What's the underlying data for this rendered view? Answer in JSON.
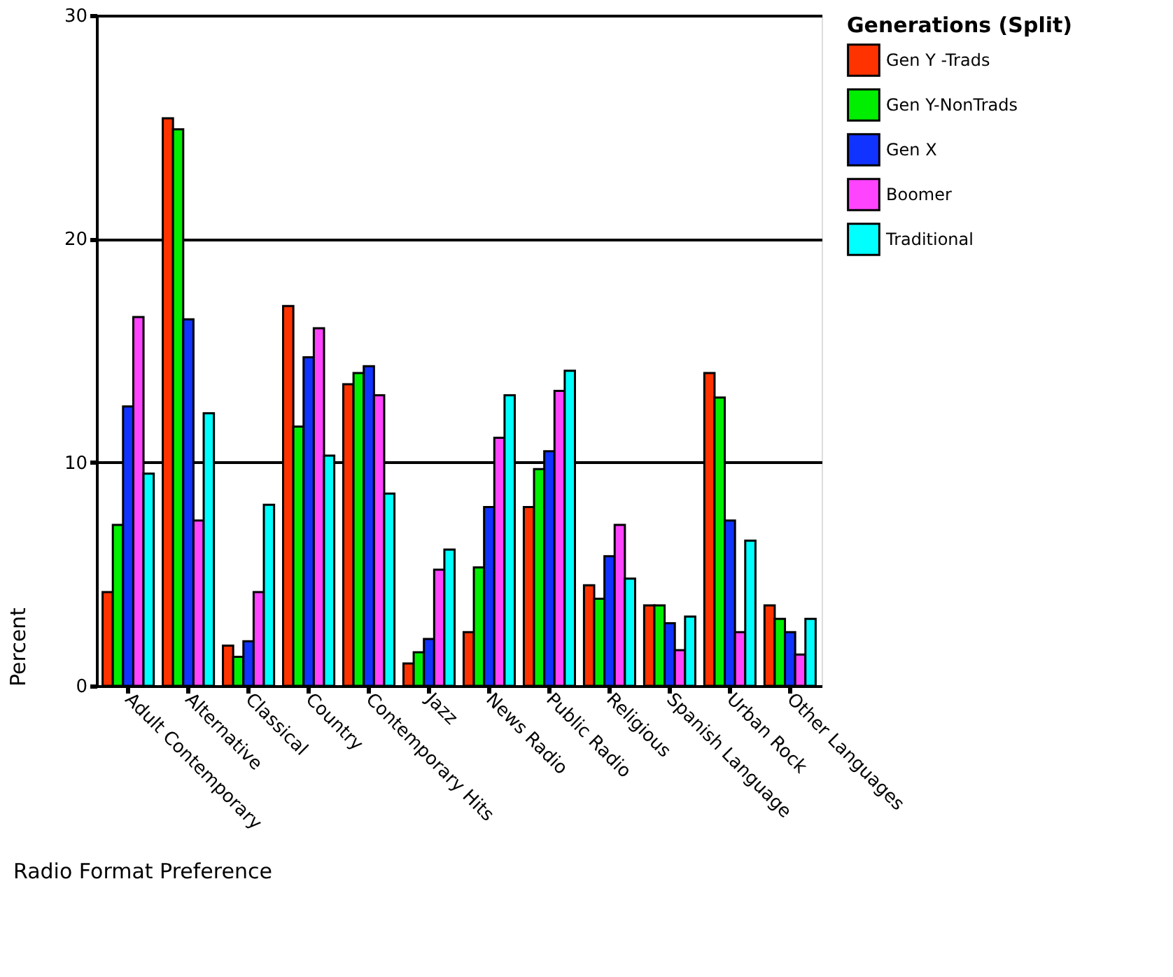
{
  "chart_data": {
    "type": "bar",
    "xlabel": "Radio Format Preference",
    "ylabel": "Percent",
    "legend_title": "Generations (Split)",
    "categories": [
      "Adult Contemporary",
      "Alternative",
      "Classical",
      "Country",
      "Contemporary Hits",
      "Jazz",
      "News Radio",
      "Public Radio",
      "Religious",
      "Spanish Language",
      "Urban Rock",
      "Other Languages"
    ],
    "series": [
      {
        "name": "Gen Y -Trads",
        "color": "#ff3300",
        "values": [
          4.2,
          25.4,
          1.8,
          17.0,
          13.5,
          1.0,
          2.4,
          8.0,
          4.5,
          3.6,
          14.0,
          3.6
        ]
      },
      {
        "name": "Gen Y-NonTrads",
        "color": "#00ee00",
        "values": [
          7.2,
          24.9,
          1.3,
          11.6,
          14.0,
          1.5,
          5.3,
          9.7,
          3.9,
          3.6,
          12.9,
          3.0
        ]
      },
      {
        "name": "Gen X",
        "color": "#1133ff",
        "values": [
          12.5,
          16.4,
          2.0,
          14.7,
          14.3,
          2.1,
          8.0,
          10.5,
          5.8,
          2.8,
          7.4,
          2.4
        ]
      },
      {
        "name": "Boomer",
        "color": "#ff44ff",
        "values": [
          16.5,
          7.4,
          4.2,
          16.0,
          13.0,
          5.2,
          11.1,
          13.2,
          7.2,
          1.6,
          2.4,
          1.4
        ]
      },
      {
        "name": "Traditional",
        "color": "#00ffff",
        "values": [
          9.5,
          12.2,
          8.1,
          10.3,
          8.6,
          6.1,
          13.0,
          14.1,
          4.8,
          3.1,
          6.5,
          3.0
        ]
      }
    ],
    "ylim": [
      0,
      30
    ],
    "yticks": [
      0,
      10,
      20,
      30
    ],
    "grid": "y",
    "legend": "right"
  }
}
